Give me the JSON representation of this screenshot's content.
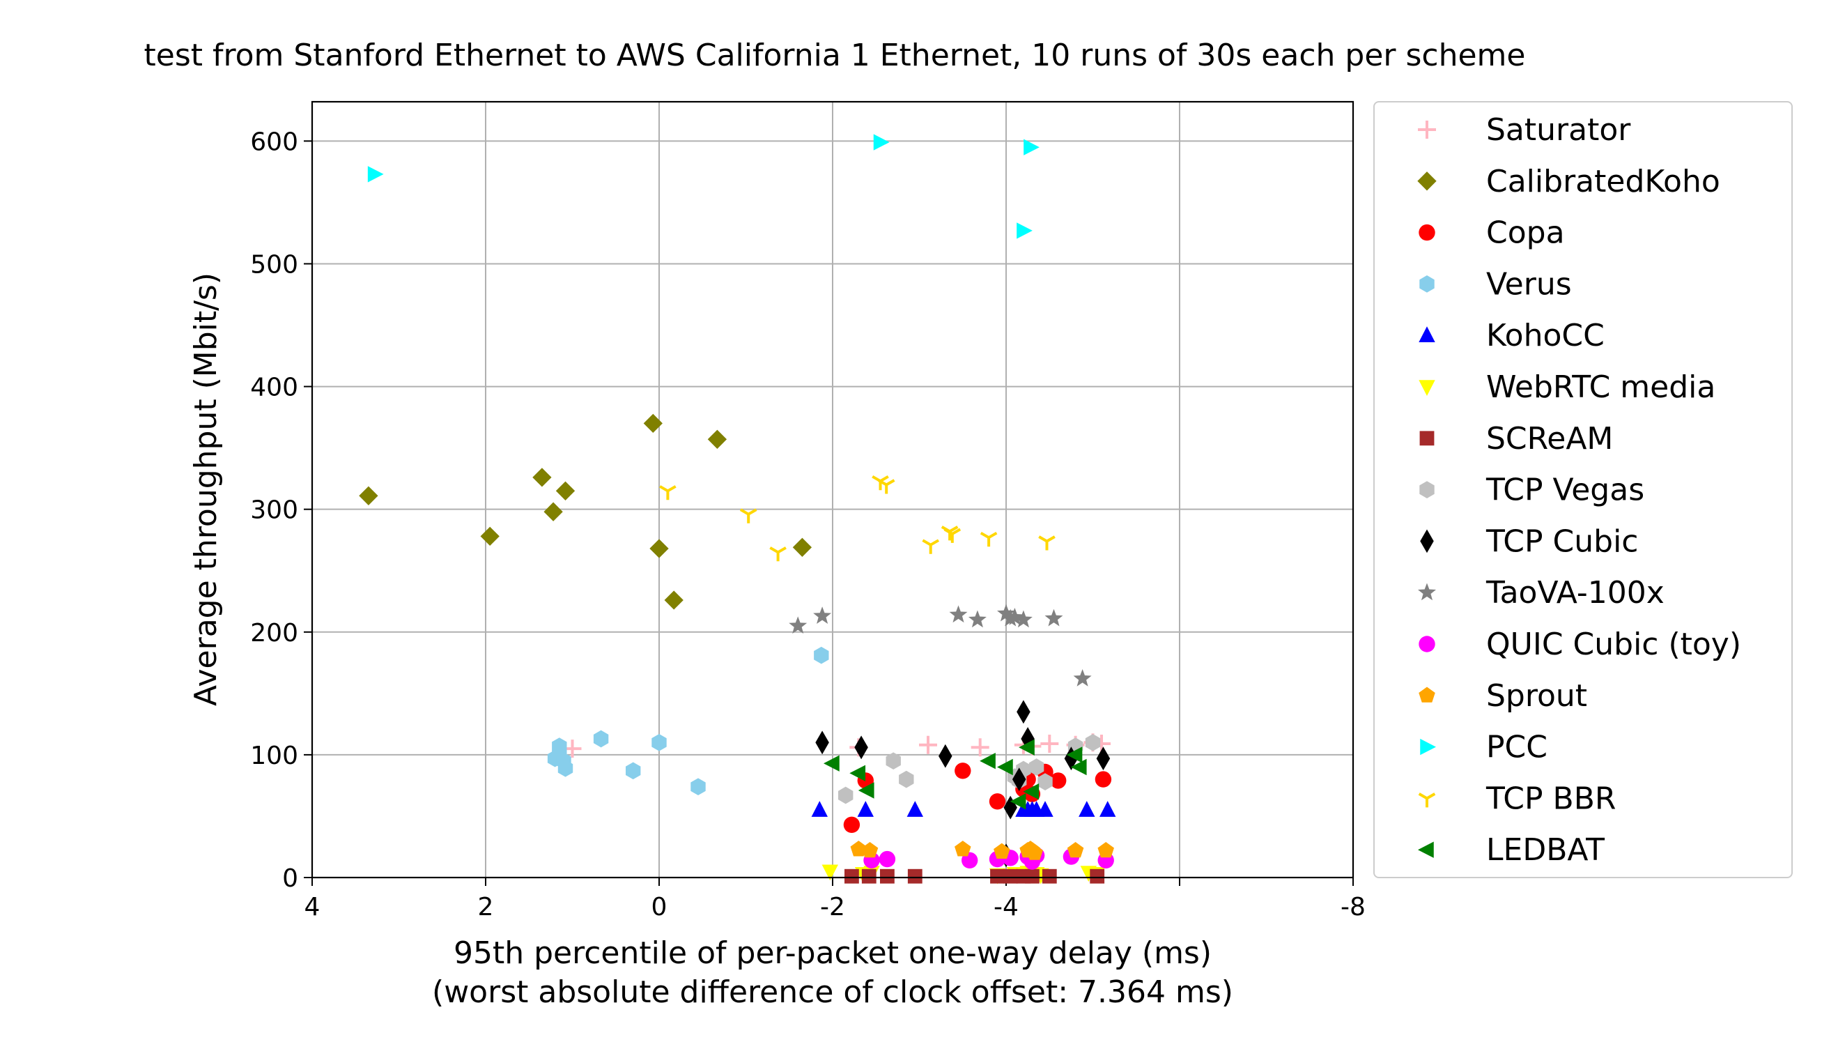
{
  "chart_data": {
    "type": "scatter",
    "title": "test from Stanford Ethernet to AWS California 1 Ethernet, 10 runs of 30s each per scheme",
    "xlabel": "95th percentile of per-packet one-way delay (ms)",
    "xlabel2": "(worst absolute difference of clock offset: 7.364 ms)",
    "ylabel": "Average throughput (Mbit/s)",
    "xlim": [
      4,
      -8
    ],
    "ylim": [
      0,
      632
    ],
    "xticks": [
      4,
      2,
      0,
      -2,
      -4,
      -6,
      -8
    ],
    "xtick_labels": [
      "4",
      "2",
      "0",
      "-2",
      "-4",
      "",
      "-8"
    ],
    "yticks": [
      0,
      100,
      200,
      300,
      400,
      500,
      600
    ],
    "ytick_labels": [
      "0",
      "100",
      "200",
      "300",
      "400",
      "500",
      "600"
    ],
    "grid": true,
    "legend_position": "right-outside",
    "series": [
      {
        "name": "Saturator",
        "marker": "plus",
        "color": "#ffb6c1",
        "points": [
          [
            1.0,
            105
          ],
          [
            -2.3,
            106
          ],
          [
            -3.1,
            108
          ],
          [
            -4.2,
            108
          ],
          [
            -4.5,
            109
          ],
          [
            -4.8,
            108
          ],
          [
            -5.0,
            110
          ],
          [
            -5.1,
            109
          ],
          [
            -4.3,
            107
          ],
          [
            -3.7,
            106
          ]
        ]
      },
      {
        "name": "CalibratedKoho",
        "marker": "diamond",
        "color": "#808000",
        "points": [
          [
            3.35,
            311
          ],
          [
            1.95,
            278
          ],
          [
            1.35,
            326
          ],
          [
            1.22,
            298
          ],
          [
            1.08,
            315
          ],
          [
            0.07,
            370
          ],
          [
            -0.67,
            357
          ],
          [
            0.0,
            268
          ],
          [
            -0.17,
            226
          ],
          [
            -1.65,
            269
          ]
        ]
      },
      {
        "name": "Copa",
        "marker": "circle",
        "color": "#ff0000",
        "points": [
          [
            -2.22,
            43
          ],
          [
            -2.38,
            79
          ],
          [
            -3.5,
            87
          ],
          [
            -3.9,
            62
          ],
          [
            -4.2,
            72
          ],
          [
            -4.3,
            68
          ],
          [
            -4.45,
            86
          ],
          [
            -4.6,
            79
          ],
          [
            -5.12,
            80
          ],
          [
            -4.25,
            80
          ]
        ]
      },
      {
        "name": "Verus",
        "marker": "hexagon",
        "color": "#87ceeb",
        "points": [
          [
            -1.87,
            181
          ],
          [
            1.2,
            97
          ],
          [
            1.15,
            107
          ],
          [
            1.08,
            89
          ],
          [
            0.67,
            113
          ],
          [
            0.3,
            87
          ],
          [
            0.0,
            110
          ],
          [
            -0.45,
            74
          ],
          [
            1.15,
            100
          ],
          [
            1.1,
            95
          ]
        ]
      },
      {
        "name": "KohoCC",
        "marker": "triangle-up",
        "color": "#0000ff",
        "points": [
          [
            -1.85,
            55
          ],
          [
            -2.38,
            55
          ],
          [
            -2.95,
            55
          ],
          [
            -4.2,
            55
          ],
          [
            -4.3,
            55
          ],
          [
            -4.35,
            55
          ],
          [
            -4.45,
            55
          ],
          [
            -4.93,
            55
          ],
          [
            -5.17,
            55
          ],
          [
            -4.25,
            55
          ]
        ]
      },
      {
        "name": "WebRTC media",
        "marker": "triangle-down",
        "color": "#ffff00",
        "points": [
          [
            -1.97,
            5
          ],
          [
            -2.45,
            4
          ],
          [
            -4.1,
            3
          ],
          [
            -4.25,
            4
          ],
          [
            -4.35,
            3
          ],
          [
            -4.95,
            4
          ],
          [
            -5.05,
            3
          ],
          [
            -3.9,
            2
          ],
          [
            -2.35,
            3
          ],
          [
            -4.4,
            2
          ]
        ]
      },
      {
        "name": "SCReAM",
        "marker": "square",
        "color": "#a52a2a",
        "points": [
          [
            -2.22,
            1
          ],
          [
            -2.42,
            1
          ],
          [
            -2.63,
            1
          ],
          [
            -2.95,
            1
          ],
          [
            -3.9,
            1
          ],
          [
            -4.05,
            1
          ],
          [
            -4.2,
            1
          ],
          [
            -4.3,
            1
          ],
          [
            -4.5,
            1
          ],
          [
            -5.05,
            1
          ]
        ]
      },
      {
        "name": "TCP Vegas",
        "marker": "hexagon",
        "color": "#c0c0c0",
        "points": [
          [
            -2.15,
            67
          ],
          [
            -2.7,
            95
          ],
          [
            -2.85,
            80
          ],
          [
            -4.1,
            82
          ],
          [
            -4.2,
            88
          ],
          [
            -4.35,
            90
          ],
          [
            -4.45,
            78
          ],
          [
            -4.8,
            107
          ],
          [
            -5.0,
            110
          ],
          [
            -4.15,
            79
          ]
        ]
      },
      {
        "name": "TCP Cubic",
        "marker": "thin-diamond",
        "color": "#000000",
        "points": [
          [
            -1.88,
            110
          ],
          [
            -2.33,
            106
          ],
          [
            -3.3,
            99
          ],
          [
            -4.05,
            57
          ],
          [
            -4.15,
            80
          ],
          [
            -4.2,
            135
          ],
          [
            -4.25,
            113
          ],
          [
            -4.75,
            97
          ],
          [
            -5.12,
            97
          ],
          [
            -4.0,
            18
          ]
        ]
      },
      {
        "name": "TaoVA-100x",
        "marker": "star",
        "color": "#808080",
        "points": [
          [
            -1.6,
            205
          ],
          [
            -1.88,
            213
          ],
          [
            -3.45,
            214
          ],
          [
            -3.67,
            210
          ],
          [
            -4.0,
            215
          ],
          [
            -4.05,
            211
          ],
          [
            -4.2,
            210
          ],
          [
            -4.55,
            211
          ],
          [
            -4.88,
            162
          ],
          [
            -4.1,
            212
          ]
        ]
      },
      {
        "name": "QUIC Cubic (toy)",
        "marker": "circle",
        "color": "#ff00ff",
        "points": [
          [
            -2.45,
            14
          ],
          [
            -2.63,
            15
          ],
          [
            -3.58,
            14
          ],
          [
            -3.9,
            15
          ],
          [
            -4.05,
            16
          ],
          [
            -4.25,
            17
          ],
          [
            -4.35,
            18
          ],
          [
            -4.75,
            17
          ],
          [
            -5.15,
            14
          ],
          [
            -4.3,
            13
          ]
        ]
      },
      {
        "name": "Sprout",
        "marker": "pentagon",
        "color": "#ffa500",
        "points": [
          [
            -2.3,
            23
          ],
          [
            -2.43,
            22
          ],
          [
            -3.5,
            23
          ],
          [
            -3.95,
            21
          ],
          [
            -4.25,
            22
          ],
          [
            -4.3,
            22
          ],
          [
            -4.33,
            20
          ],
          [
            -4.8,
            22
          ],
          [
            -5.15,
            22
          ],
          [
            -4.28,
            23
          ]
        ]
      },
      {
        "name": "PCC",
        "marker": "triangle-right",
        "color": "#00ffff",
        "points": [
          [
            3.28,
            573
          ],
          [
            -2.55,
            599
          ],
          [
            -4.28,
            595
          ],
          [
            -4.2,
            527
          ]
        ]
      },
      {
        "name": "TCP BBR",
        "marker": "tri-down",
        "color": "#ffd700",
        "points": [
          [
            -0.1,
            315
          ],
          [
            -1.03,
            296
          ],
          [
            -1.37,
            265
          ],
          [
            -2.55,
            323
          ],
          [
            -2.62,
            320
          ],
          [
            -3.13,
            271
          ],
          [
            -3.35,
            282
          ],
          [
            -3.38,
            280
          ],
          [
            -3.8,
            277
          ],
          [
            -4.47,
            274
          ]
        ]
      },
      {
        "name": "LEDBAT",
        "marker": "triangle-left",
        "color": "#008000",
        "points": [
          [
            -2.0,
            93
          ],
          [
            -2.3,
            85
          ],
          [
            -2.4,
            71
          ],
          [
            -3.8,
            95
          ],
          [
            -4.0,
            90
          ],
          [
            -4.15,
            62
          ],
          [
            -4.25,
            106
          ],
          [
            -4.3,
            70
          ],
          [
            -4.8,
            100
          ],
          [
            -4.85,
            90
          ]
        ]
      }
    ]
  }
}
